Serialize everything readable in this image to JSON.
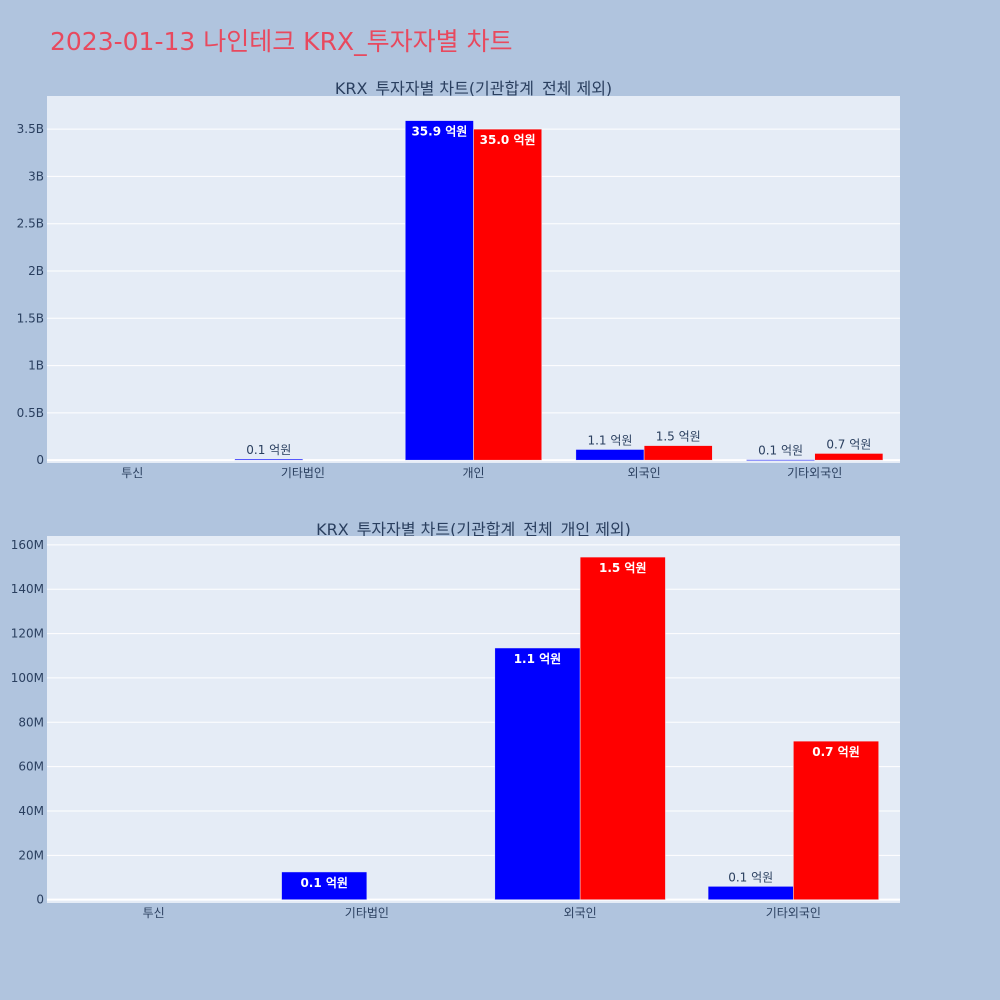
{
  "page": {
    "title": "2023-01-13 나인테크 KRX_투자자별 차트"
  },
  "colors": {
    "background": "#b0c4de",
    "plot_bg": "#e5ecf6",
    "title": "#e8495e",
    "buy": "#0000ff",
    "sell": "#ff0000"
  },
  "chart_data": [
    {
      "type": "bar",
      "title": "KRX_투자자별 차트(기관합계_전체 제외)",
      "categories": [
        "투신",
        "기타법인",
        "개인",
        "외국인",
        "기타외국인"
      ],
      "series": [
        {
          "color": "#0000ff",
          "values": [
            0,
            12000000,
            3590000000,
            113000000,
            6000000
          ],
          "labels": [
            "",
            "0.1 억원",
            "35.9 억원",
            "1.1 억원",
            "0.1 억원"
          ]
        },
        {
          "color": "#ff0000",
          "values": [
            0,
            0,
            3500000000,
            154000000,
            71000000
          ],
          "labels": [
            "",
            "",
            "35.0 억원",
            "1.5 억원",
            "0.7 억원"
          ]
        }
      ],
      "ylim": [
        -30000000,
        3850000000
      ],
      "yticks": [
        0,
        500000000,
        1000000000,
        1500000000,
        2000000000,
        2500000000,
        3000000000,
        3500000000
      ],
      "ytick_labels": [
        "0",
        "0.5B",
        "1B",
        "1.5B",
        "2B",
        "2.5B",
        "3B",
        "3.5B"
      ],
      "grid": true,
      "legend": "none"
    },
    {
      "type": "bar",
      "title": "KRX_투자자별 차트(기관합계_전체_개인 제외)",
      "categories": [
        "투신",
        "기타법인",
        "외국인",
        "기타외국인"
      ],
      "series": [
        {
          "color": "#0000ff",
          "values": [
            0,
            12500000,
            113500000,
            6000000
          ],
          "labels": [
            "",
            "0.1 억원",
            "1.1 억원",
            "0.1 억원"
          ]
        },
        {
          "color": "#ff0000",
          "values": [
            0,
            0,
            154500000,
            71500000
          ],
          "labels": [
            "",
            "",
            "1.5 억원",
            "0.7 억원"
          ]
        }
      ],
      "ylim": [
        -1500000,
        164000000
      ],
      "yticks": [
        0,
        20000000,
        40000000,
        60000000,
        80000000,
        100000000,
        120000000,
        140000000,
        160000000
      ],
      "ytick_labels": [
        "0",
        "20M",
        "40M",
        "60M",
        "80M",
        "100M",
        "120M",
        "140M",
        "160M"
      ],
      "grid": true,
      "legend": "none"
    }
  ]
}
